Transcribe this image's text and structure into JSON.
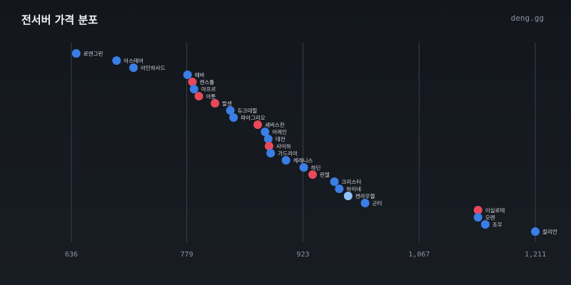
{
  "header": {
    "title": "전서버 가격 분포",
    "source": "deng.gg"
  },
  "colors": {
    "blue": "#3a7ee6",
    "red": "#e8495a",
    "light": "#8ec3f5",
    "grid": "#3a3f47"
  },
  "chart_data": {
    "type": "scatter",
    "title": "전서버 가격 분포",
    "xlabel": "",
    "ylabel": "",
    "xlim": [
      636,
      1211
    ],
    "x_ticks": [
      636,
      779,
      923,
      1067,
      1211
    ],
    "x_tick_labels": [
      "636",
      "779",
      "923",
      "1,067",
      "1,211"
    ],
    "grid": "vertical",
    "points": [
      {
        "name": "로엔그린",
        "x": 642,
        "color": "blue"
      },
      {
        "name": "아스테어",
        "x": 692,
        "color": "blue"
      },
      {
        "name": "아인하사드",
        "x": 713,
        "color": "blue"
      },
      {
        "name": "에바",
        "x": 780,
        "color": "blue"
      },
      {
        "name": "켄스톨",
        "x": 786,
        "color": "red"
      },
      {
        "name": "마프르",
        "x": 788,
        "color": "blue"
      },
      {
        "name": "아툰",
        "x": 794,
        "color": "red"
      },
      {
        "name": "발센",
        "x": 814,
        "color": "red"
      },
      {
        "name": "듀크데필",
        "x": 833,
        "color": "blue"
      },
      {
        "name": "파아그리오",
        "x": 837,
        "color": "blue"
      },
      {
        "name": "세바스찬",
        "x": 867,
        "color": "red"
      },
      {
        "name": "어레인",
        "x": 876,
        "color": "blue"
      },
      {
        "name": "데컨",
        "x": 880,
        "color": "blue"
      },
      {
        "name": "사이하",
        "x": 881,
        "color": "red"
      },
      {
        "name": "가드리아",
        "x": 883,
        "color": "blue"
      },
      {
        "name": "케레니스",
        "x": 902,
        "color": "blue"
      },
      {
        "name": "하딘",
        "x": 924,
        "color": "blue"
      },
      {
        "name": "린델",
        "x": 935,
        "color": "red"
      },
      {
        "name": "크리스터",
        "x": 962,
        "color": "blue"
      },
      {
        "name": "하이네",
        "x": 968,
        "color": "blue"
      },
      {
        "name": "켄라우헬",
        "x": 979,
        "color": "light"
      },
      {
        "name": "군터",
        "x": 1000,
        "color": "blue"
      },
      {
        "name": "이실로테",
        "x": 1140,
        "color": "red"
      },
      {
        "name": "오렌",
        "x": 1140,
        "color": "blue"
      },
      {
        "name": "조우",
        "x": 1149,
        "color": "blue"
      },
      {
        "name": "질리언",
        "x": 1211,
        "color": "blue"
      }
    ]
  }
}
